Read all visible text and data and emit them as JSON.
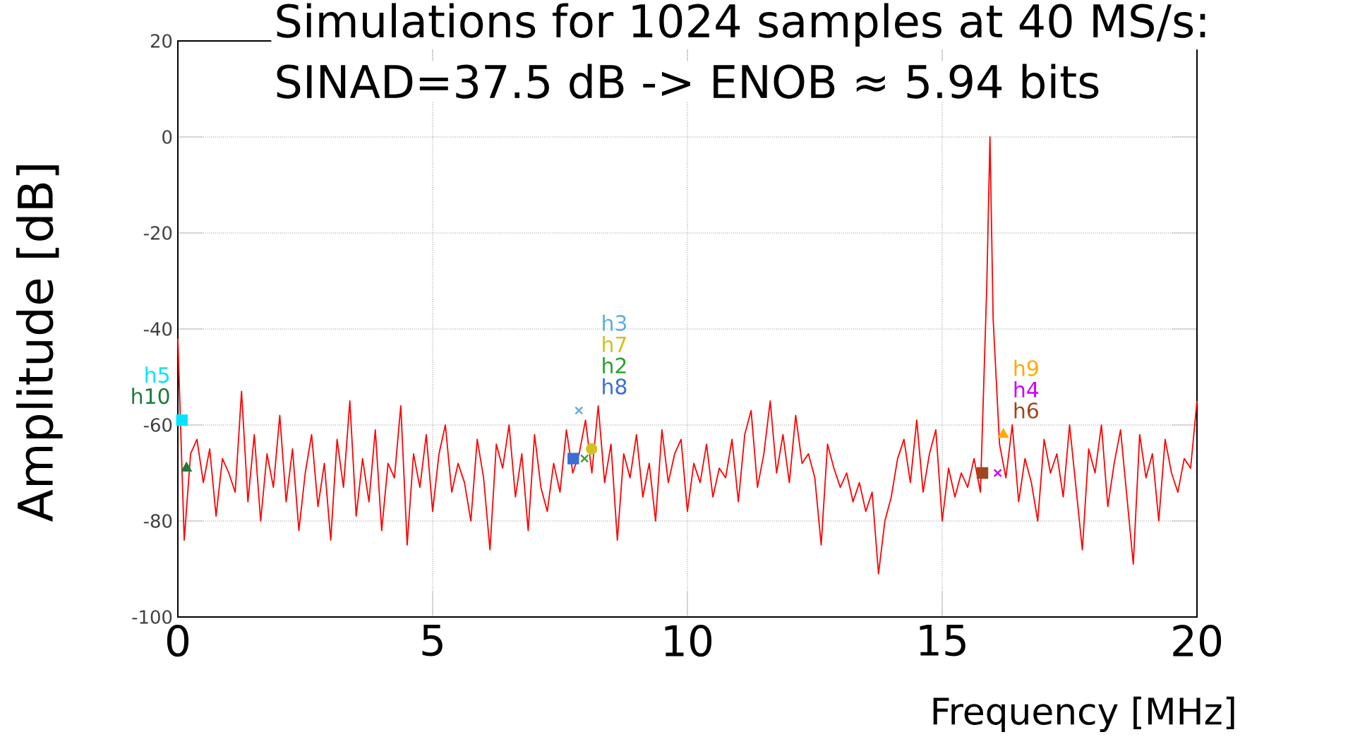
{
  "chart_data": {
    "type": "line",
    "title": "Simulations for 1024 samples at 40 MS/s:",
    "subtitle": "SINAD=37.5 dB -> ENOB ≈ 5.94 bits",
    "xlabel": "Frequency [MHz]",
    "ylabel": "Amplitude [dB]",
    "xlim": [
      0,
      20
    ],
    "ylim": [
      -100,
      20
    ],
    "xticks": [
      0,
      5,
      10,
      15,
      20
    ],
    "yticks": [
      -100,
      -80,
      -60,
      -40,
      -20,
      0,
      20
    ],
    "grid": true,
    "marker": "none",
    "series": [
      {
        "color": "#ff0000",
        "x": [
          0,
          0.125,
          0.25,
          0.375,
          0.5,
          0.625,
          0.75,
          0.875,
          1,
          1.125,
          1.25,
          1.375,
          1.5,
          1.625,
          1.75,
          1.875,
          2,
          2.125,
          2.25,
          2.375,
          2.5,
          2.625,
          2.75,
          2.875,
          3,
          3.125,
          3.25,
          3.375,
          3.5,
          3.625,
          3.75,
          3.875,
          4,
          4.125,
          4.25,
          4.375,
          4.5,
          4.625,
          4.75,
          4.875,
          5,
          5.125,
          5.25,
          5.375,
          5.5,
          5.625,
          5.75,
          5.875,
          6,
          6.125,
          6.25,
          6.375,
          6.5,
          6.625,
          6.75,
          6.875,
          7,
          7.125,
          7.25,
          7.375,
          7.5,
          7.625,
          7.75,
          7.875,
          8,
          8.125,
          8.25,
          8.375,
          8.5,
          8.625,
          8.75,
          8.875,
          9,
          9.125,
          9.25,
          9.375,
          9.5,
          9.625,
          9.75,
          9.875,
          10,
          10.125,
          10.25,
          10.375,
          10.5,
          10.625,
          10.75,
          10.875,
          11,
          11.125,
          11.25,
          11.375,
          11.5,
          11.625,
          11.75,
          11.875,
          12,
          12.125,
          12.25,
          12.375,
          12.5,
          12.625,
          12.75,
          12.875,
          13,
          13.125,
          13.25,
          13.375,
          13.5,
          13.625,
          13.75,
          13.875,
          14,
          14.125,
          14.25,
          14.375,
          14.5,
          14.625,
          14.75,
          14.875,
          15,
          15.125,
          15.25,
          15.375,
          15.5,
          15.625,
          15.75,
          15.875,
          15.9375,
          16,
          16.125,
          16.25,
          16.375,
          16.5,
          16.625,
          16.75,
          16.875,
          17,
          17.125,
          17.25,
          17.375,
          17.5,
          17.625,
          17.75,
          17.875,
          18,
          18.125,
          18.25,
          18.375,
          18.5,
          18.625,
          18.75,
          18.875,
          19,
          19.125,
          19.25,
          19.375,
          19.5,
          19.625,
          19.75,
          19.875,
          20
        ],
        "values": [
          -42,
          -84,
          -66,
          -63,
          -72,
          -65,
          -79,
          -67,
          -70,
          -74,
          -53,
          -76,
          -62,
          -80,
          -66,
          -73,
          -58,
          -76,
          -65,
          -82,
          -70,
          -62,
          -77,
          -68,
          -84,
          -63,
          -73,
          -55,
          -79,
          -67,
          -76,
          -61,
          -82,
          -68,
          -71,
          -56,
          -85,
          -66,
          -73,
          -62,
          -78,
          -66,
          -60,
          -74,
          -68,
          -72,
          -80,
          -63,
          -71,
          -86,
          -64,
          -69,
          -60,
          -75,
          -66,
          -82,
          -62,
          -73,
          -78,
          -68,
          -74,
          -61,
          -70,
          -66,
          -59,
          -70,
          -56,
          -72,
          -64,
          -84,
          -66,
          -71,
          -62,
          -75,
          -68,
          -80,
          -61,
          -72,
          -66,
          -63,
          -78,
          -68,
          -72,
          -64,
          -75,
          -69,
          -71,
          -63,
          -76,
          -62,
          -57,
          -73,
          -66,
          -55,
          -70,
          -62,
          -72,
          -58,
          -68,
          -66,
          -71,
          -85,
          -64,
          -69,
          -73,
          -70,
          -76,
          -72,
          -78,
          -74,
          -91,
          -80,
          -75,
          -67,
          -63,
          -72,
          -59,
          -74,
          -66,
          -61,
          -80,
          -69,
          -75,
          -70,
          -73,
          -67,
          -74,
          -31,
          0,
          -38,
          -64,
          -71,
          -60,
          -76,
          -67,
          -72,
          -80,
          -63,
          -70,
          -66,
          -75,
          -60,
          -73,
          -86,
          -65,
          -70,
          -60,
          -77,
          -68,
          -61,
          -75,
          -89,
          -62,
          -71,
          -66,
          -80,
          -63,
          -70,
          -74,
          -67,
          -69,
          -55
        ]
      },
      {
        "name": "h2",
        "type": "scatter",
        "marker": "cross",
        "color": "#2ca02c",
        "x": [
          7.98
        ],
        "values": [
          -67
        ]
      },
      {
        "name": "h3",
        "type": "scatter",
        "marker": "cross",
        "color": "#5dade2",
        "x": [
          7.87
        ],
        "values": [
          -57
        ]
      },
      {
        "name": "h4",
        "type": "scatter",
        "marker": "cross",
        "color": "#cc00ff",
        "x": [
          16.09
        ],
        "values": [
          -70
        ]
      },
      {
        "name": "h5",
        "type": "scatter",
        "marker": "square",
        "color": "#00e5ff",
        "x": [
          0.08
        ],
        "values": [
          -59
        ]
      },
      {
        "name": "h6",
        "type": "scatter",
        "marker": "square",
        "color": "#a0461e",
        "x": [
          15.79
        ],
        "values": [
          -70
        ]
      },
      {
        "name": "h7",
        "type": "scatter",
        "marker": "circle",
        "color": "#d4c020",
        "x": [
          8.12
        ],
        "values": [
          -65
        ]
      },
      {
        "name": "h8",
        "type": "scatter",
        "marker": "square",
        "color": "#3a6fd8",
        "x": [
          7.76
        ],
        "values": [
          -67
        ]
      },
      {
        "name": "h9",
        "type": "scatter",
        "marker": "triangle",
        "color": "#ffaa00",
        "x": [
          16.2
        ],
        "values": [
          -62
        ]
      },
      {
        "name": "h10",
        "type": "scatter",
        "marker": "triangle",
        "color": "#1e7b3c",
        "x": [
          0.17
        ],
        "values": [
          -69
        ]
      }
    ]
  }
}
